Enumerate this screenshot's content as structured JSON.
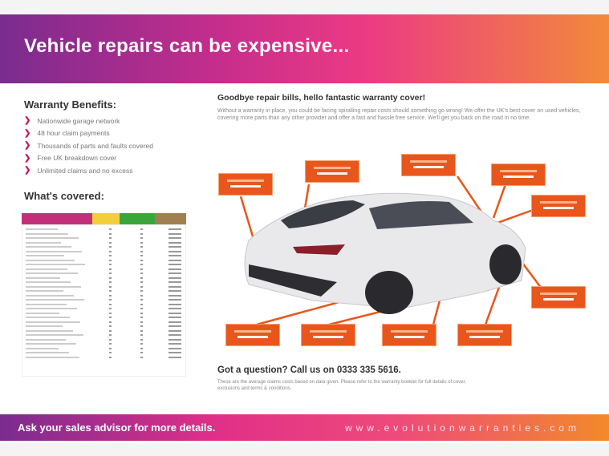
{
  "header": {
    "title": "Vehicle repairs can be expensive..."
  },
  "benefits": {
    "title": "Warranty Benefits:",
    "items": [
      "Nationwide garage network",
      "48 hour claim payments",
      "Thousands of parts and faults covered",
      "Free UK breakdown cover",
      "Unlimited claims and no excess"
    ]
  },
  "covered": {
    "title": "What's covered:",
    "header_colors": [
      "#c2307a",
      "#f2cf3a",
      "#3aa63a",
      "#a08050"
    ]
  },
  "main": {
    "headline": "Goodbye repair bills, hello fantastic warranty cover!",
    "body": "Without a warranty in place, you could be facing spiralling repair costs should something go wrong! We offer the UK's best cover on used vehicles, covering more parts than any other provider and offer a fast and hassle free service. We'll get you back on the road in no time.",
    "question": "Got a question? Call us on 0333 335 5616.",
    "footnote": "These are the average claims costs based on data given. Please refer to the warranty booklet for full details of cover, exclusions and terms & conditions."
  },
  "footer": {
    "left": "Ask your sales advisor for more details.",
    "right": "www.evolutionwarranties.com"
  },
  "colors": {
    "accent_orange": "#e8561c",
    "purple": "#7a2c8f",
    "pink": "#ec3a84"
  }
}
